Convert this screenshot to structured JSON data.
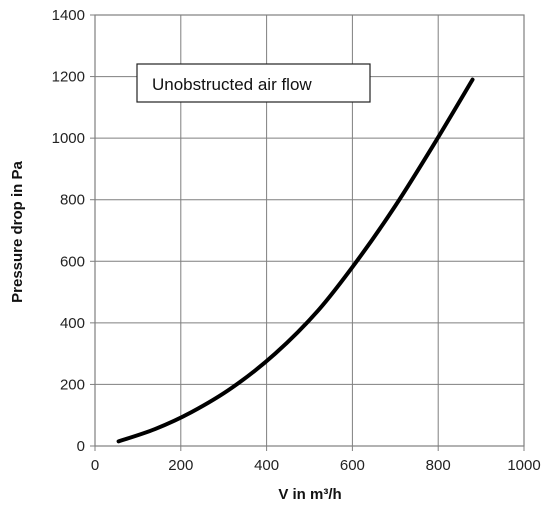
{
  "chart_data": {
    "type": "line",
    "title": "",
    "xlabel": "V in m³/h",
    "ylabel": "Pressure drop in Pa",
    "xlim": [
      0,
      1000
    ],
    "ylim": [
      0,
      1400
    ],
    "x_ticks": [
      "0",
      "200",
      "400",
      "600",
      "800",
      "1000"
    ],
    "y_ticks": [
      "0",
      "200",
      "400",
      "600",
      "800",
      "1000",
      "1200",
      "1400"
    ],
    "grid": true,
    "annotation": "Unobstructed air flow",
    "series": [
      {
        "color": "#000000",
        "x": [
          55,
          140,
          225,
          320,
          420,
          520,
          610,
          700,
          790,
          880
        ],
        "y": [
          15,
          55,
          110,
          190,
          300,
          440,
          600,
          780,
          980,
          1190
        ]
      }
    ]
  }
}
